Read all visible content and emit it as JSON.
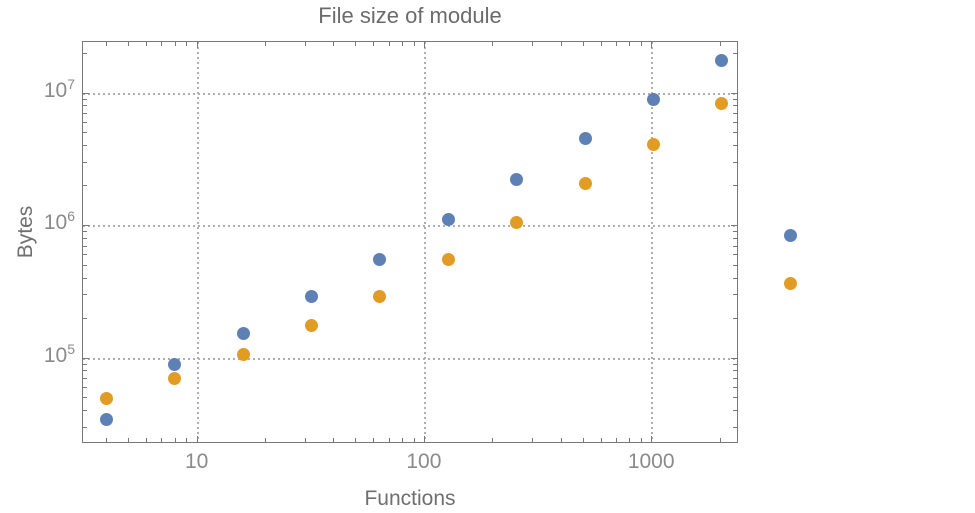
{
  "title": "File size of module",
  "colors": {
    "series_blue": "#5e81b5",
    "series_orange": "#e19c24",
    "frame": "#787878",
    "gridline": "#aeaeae",
    "title_text": "#6b6b6b",
    "axis_label_text": "#6f6f6f",
    "tick_label_text": "#8a8a8a",
    "background": "#ffffff"
  },
  "chart_data": {
    "type": "scatter",
    "title": "File size of module",
    "xlabel": "Functions",
    "ylabel": "Bytes",
    "x_scale": "log",
    "y_scale": "log",
    "x_range": [
      3.13,
      2410
    ],
    "y_range": [
      22630,
      24480000
    ],
    "grid": "dotted",
    "legend": "none",
    "points_outside_frame": [
      [
        4096,
        840000
      ],
      [
        4096,
        365000
      ]
    ],
    "x_ticks": [
      {
        "value": 10,
        "label": "10"
      },
      {
        "value": 100,
        "label": "100"
      },
      {
        "value": 1000,
        "label": "1000"
      }
    ],
    "y_ticks": [
      {
        "value": 100000,
        "base": "10",
        "exp": "5"
      },
      {
        "value": 1000000,
        "base": "10",
        "exp": "6"
      },
      {
        "value": 10000000,
        "base": "10",
        "exp": "7"
      }
    ],
    "series": [
      {
        "name": "blue",
        "color": "#5e81b5",
        "points": [
          [
            4,
            34000
          ],
          [
            8,
            88000
          ],
          [
            16,
            153000
          ],
          [
            32,
            291000
          ],
          [
            64,
            553000
          ],
          [
            128,
            1110000
          ],
          [
            256,
            2220000
          ],
          [
            512,
            4460000
          ],
          [
            1024,
            8800000
          ],
          [
            2048,
            17300000
          ],
          [
            4096,
            840000
          ]
        ]
      },
      {
        "name": "orange",
        "color": "#e19c24",
        "points": [
          [
            4,
            49000
          ],
          [
            8,
            70000
          ],
          [
            16,
            106000
          ],
          [
            32,
            173000
          ],
          [
            64,
            291000
          ],
          [
            128,
            545000
          ],
          [
            256,
            1050000
          ],
          [
            512,
            2040000
          ],
          [
            1024,
            4080000
          ],
          [
            2048,
            8300000
          ],
          [
            4096,
            365000
          ]
        ]
      }
    ]
  }
}
